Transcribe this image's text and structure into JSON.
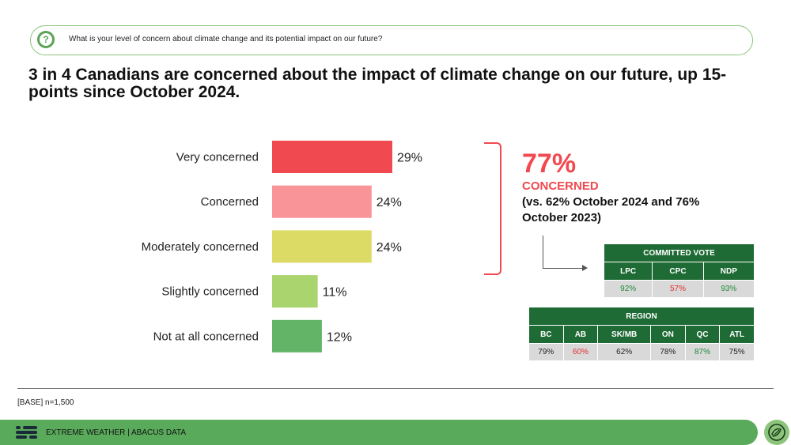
{
  "question": {
    "icon": "question-icon",
    "text": "What is your level of concern about climate change and its potential impact on our future?"
  },
  "headline": "3 in 4 Canadians are concerned about the impact of climate change on our future, up 15-points since October 2024.",
  "chart_data": {
    "type": "bar",
    "orientation": "horizontal",
    "categories": [
      "Very concerned",
      "Concerned",
      "Moderately concerned",
      "Slightly concerned",
      "Not at all concerned"
    ],
    "values": [
      29,
      24,
      24,
      11,
      12
    ],
    "labels": [
      "29%",
      "24%",
      "24%",
      "11%",
      "12%"
    ],
    "colors": [
      "#f04a50",
      "#f99598",
      "#dcdb66",
      "#a9d46e",
      "#63b467"
    ],
    "xlim": [
      0,
      29
    ]
  },
  "summary": {
    "big_value": "77%",
    "label": "CONCERNED",
    "sub": "(vs. 62% October 2024 and 76% October 2023)",
    "accent_color": "#f04a50"
  },
  "committed_vote": {
    "title": "COMMITTED VOTE",
    "headers": [
      "LPC",
      "CPC",
      "NDP"
    ],
    "values": [
      "92%",
      "57%",
      "93%"
    ],
    "value_colors": [
      "#1f8a3c",
      "#e03030",
      "#1f8a3c"
    ]
  },
  "region": {
    "title": "REGION",
    "headers": [
      "BC",
      "AB",
      "SK/MB",
      "ON",
      "QC",
      "ATL"
    ],
    "values": [
      "79%",
      "60%",
      "62%",
      "78%",
      "87%",
      "75%"
    ],
    "value_colors": [
      "#222222",
      "#e03030",
      "#222222",
      "#222222",
      "#1f8a3c",
      "#222222"
    ]
  },
  "base_note": "[BASE] n=1,500",
  "footer": {
    "text": "EXTREME WEATHER  |  ABACUS DATA",
    "logo_icon": "abacus-logo-icon",
    "badge_icon": "climate-badge-icon"
  }
}
